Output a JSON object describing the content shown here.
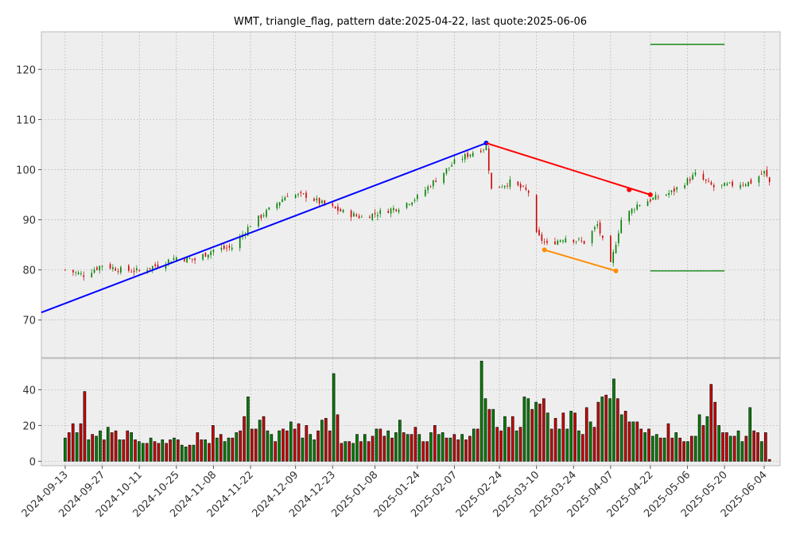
{
  "chart_data": [
    {
      "type": "candlestick",
      "title": "WMT, triangle_flag, pattern date:2025-04-22, last quote:2025-06-06",
      "x_type": "date",
      "xlim": [
        "2024-09-04",
        "2025-06-10"
      ],
      "ylim": [
        62.5,
        127.5
      ],
      "y_ticks": [
        70,
        80,
        90,
        100,
        110,
        120
      ],
      "x_ticks": [
        "2024-09-13",
        "2024-09-27",
        "2024-10-11",
        "2024-10-25",
        "2024-11-08",
        "2024-11-22",
        "2024-12-09",
        "2024-12-23",
        "2025-01-08",
        "2025-01-24",
        "2025-02-07",
        "2025-02-24",
        "2025-03-10",
        "2025-03-24",
        "2025-04-07",
        "2025-04-22",
        "2025-05-06",
        "2025-05-20",
        "2025-06-04"
      ],
      "grid": true,
      "up_color": "#008000",
      "down_color": "#cc0000",
      "anchors": [
        {
          "date": "2024-09-13",
          "close": 80.0
        },
        {
          "date": "2024-09-20",
          "close": 79.0
        },
        {
          "date": "2024-09-27",
          "close": 81.0
        },
        {
          "date": "2024-10-04",
          "close": 80.0
        },
        {
          "date": "2024-10-11",
          "close": 79.8
        },
        {
          "date": "2024-10-18",
          "close": 81.0
        },
        {
          "date": "2024-10-25",
          "close": 82.5
        },
        {
          "date": "2024-11-01",
          "close": 82.0
        },
        {
          "date": "2024-11-08",
          "close": 84.0
        },
        {
          "date": "2024-11-15",
          "close": 84.5
        },
        {
          "date": "2024-11-22",
          "close": 89.0
        },
        {
          "date": "2024-11-29",
          "close": 92.0
        },
        {
          "date": "2024-12-06",
          "close": 95.0
        },
        {
          "date": "2024-12-13",
          "close": 94.8
        },
        {
          "date": "2024-12-20",
          "close": 93.0
        },
        {
          "date": "2024-12-27",
          "close": 91.5
        },
        {
          "date": "2025-01-03",
          "close": 90.5
        },
        {
          "date": "2025-01-10",
          "close": 91.5
        },
        {
          "date": "2025-01-17",
          "close": 92.5
        },
        {
          "date": "2025-01-24",
          "close": 94.5
        },
        {
          "date": "2025-01-31",
          "close": 98.0
        },
        {
          "date": "2025-02-07",
          "close": 101.5
        },
        {
          "date": "2025-02-14",
          "close": 103.5
        },
        {
          "date": "2025-02-19",
          "close": 104.5
        },
        {
          "date": "2025-02-21",
          "close": 96.0
        },
        {
          "date": "2025-02-28",
          "close": 97.5
        },
        {
          "date": "2025-03-07",
          "close": 95.5
        },
        {
          "date": "2025-03-10",
          "close": 87.0
        },
        {
          "date": "2025-03-14",
          "close": 85.0
        },
        {
          "date": "2025-03-21",
          "close": 86.5
        },
        {
          "date": "2025-03-28",
          "close": 85.5
        },
        {
          "date": "2025-04-02",
          "close": 89.0
        },
        {
          "date": "2025-04-07",
          "close": 81.0
        },
        {
          "date": "2025-04-11",
          "close": 90.0
        },
        {
          "date": "2025-04-17",
          "close": 93.0
        },
        {
          "date": "2025-04-22",
          "close": 94.0
        },
        {
          "date": "2025-04-30",
          "close": 95.5
        },
        {
          "date": "2025-05-09",
          "close": 99.0
        },
        {
          "date": "2025-05-16",
          "close": 96.5
        },
        {
          "date": "2025-05-23",
          "close": 97.0
        },
        {
          "date": "2025-05-30",
          "close": 97.5
        },
        {
          "date": "2025-06-04",
          "close": 99.5
        },
        {
          "date": "2025-06-06",
          "close": 97.5
        }
      ],
      "pattern_lines": [
        {
          "color": "#0000ff",
          "points": [
            {
              "date": "2024-09-04",
              "value": 71.5
            },
            {
              "date": "2025-02-19",
              "value": 105.3
            }
          ],
          "markers": [
            {
              "date": "2025-02-19",
              "value": 105.3
            }
          ]
        },
        {
          "color": "#ff0000",
          "points": [
            {
              "date": "2025-02-19",
              "value": 105.3
            },
            {
              "date": "2025-04-22",
              "value": 95.0
            }
          ],
          "markers": [
            {
              "date": "2025-04-14",
              "value": 96.0
            },
            {
              "date": "2025-04-22",
              "value": 95.0
            }
          ]
        },
        {
          "color": "#ff8c00",
          "points": [
            {
              "date": "2025-03-13",
              "value": 84.0
            },
            {
              "date": "2025-04-09",
              "value": 79.8
            }
          ],
          "markers": [
            {
              "date": "2025-03-13",
              "value": 84.0
            },
            {
              "date": "2025-04-09",
              "value": 79.8
            }
          ]
        },
        {
          "color": "#008000",
          "points": [
            {
              "date": "2025-04-22",
              "value": 125.0
            },
            {
              "date": "2025-05-20",
              "value": 125.0
            }
          ],
          "markers": []
        },
        {
          "color": "#008000",
          "points": [
            {
              "date": "2025-04-22",
              "value": 79.8
            },
            {
              "date": "2025-05-20",
              "value": 79.8
            }
          ],
          "markers": []
        }
      ]
    },
    {
      "type": "bar",
      "xlim": [
        "2024-09-04",
        "2025-06-10"
      ],
      "ylim": [
        -2.5,
        57.5
      ],
      "y_ticks": [
        0,
        20,
        40
      ],
      "volume_values": [
        13,
        16,
        21,
        16,
        21,
        39,
        12,
        15,
        14,
        17,
        12,
        19,
        16,
        17,
        12,
        12,
        17,
        16,
        12,
        11,
        10,
        10,
        13,
        11,
        10,
        12,
        10,
        12,
        13,
        12,
        9,
        8,
        9,
        9,
        16,
        12,
        12,
        10,
        20,
        13,
        15,
        11,
        13,
        13,
        16,
        17,
        25,
        36,
        18,
        18,
        23,
        25,
        17,
        15,
        11,
        17,
        18,
        17,
        22,
        18,
        21,
        13,
        20,
        15,
        12,
        17,
        23,
        24,
        17,
        49,
        26,
        10,
        11,
        11,
        10,
        15,
        11,
        15,
        11,
        14,
        18,
        18,
        14,
        17,
        13,
        16,
        23,
        16,
        15,
        15,
        19,
        15,
        11,
        11,
        16,
        20,
        15,
        16,
        13,
        13,
        15,
        12,
        15,
        12,
        14,
        18,
        18,
        56,
        35,
        29,
        29,
        19,
        17,
        25,
        19,
        25,
        17,
        19,
        36,
        35,
        29,
        33,
        32,
        35,
        27,
        18,
        24,
        18,
        27,
        18,
        28,
        27,
        17,
        15,
        30,
        22,
        19,
        33,
        36,
        37,
        35,
        46,
        35,
        26,
        28,
        22,
        22,
        22,
        18,
        16,
        18,
        14,
        15,
        13,
        13,
        21,
        13,
        16,
        13,
        11,
        11,
        14,
        14,
        26,
        20,
        25,
        43,
        33,
        20,
        16,
        16,
        14,
        14,
        17,
        11,
        14,
        30,
        17,
        16,
        11,
        16,
        1
      ]
    }
  ]
}
